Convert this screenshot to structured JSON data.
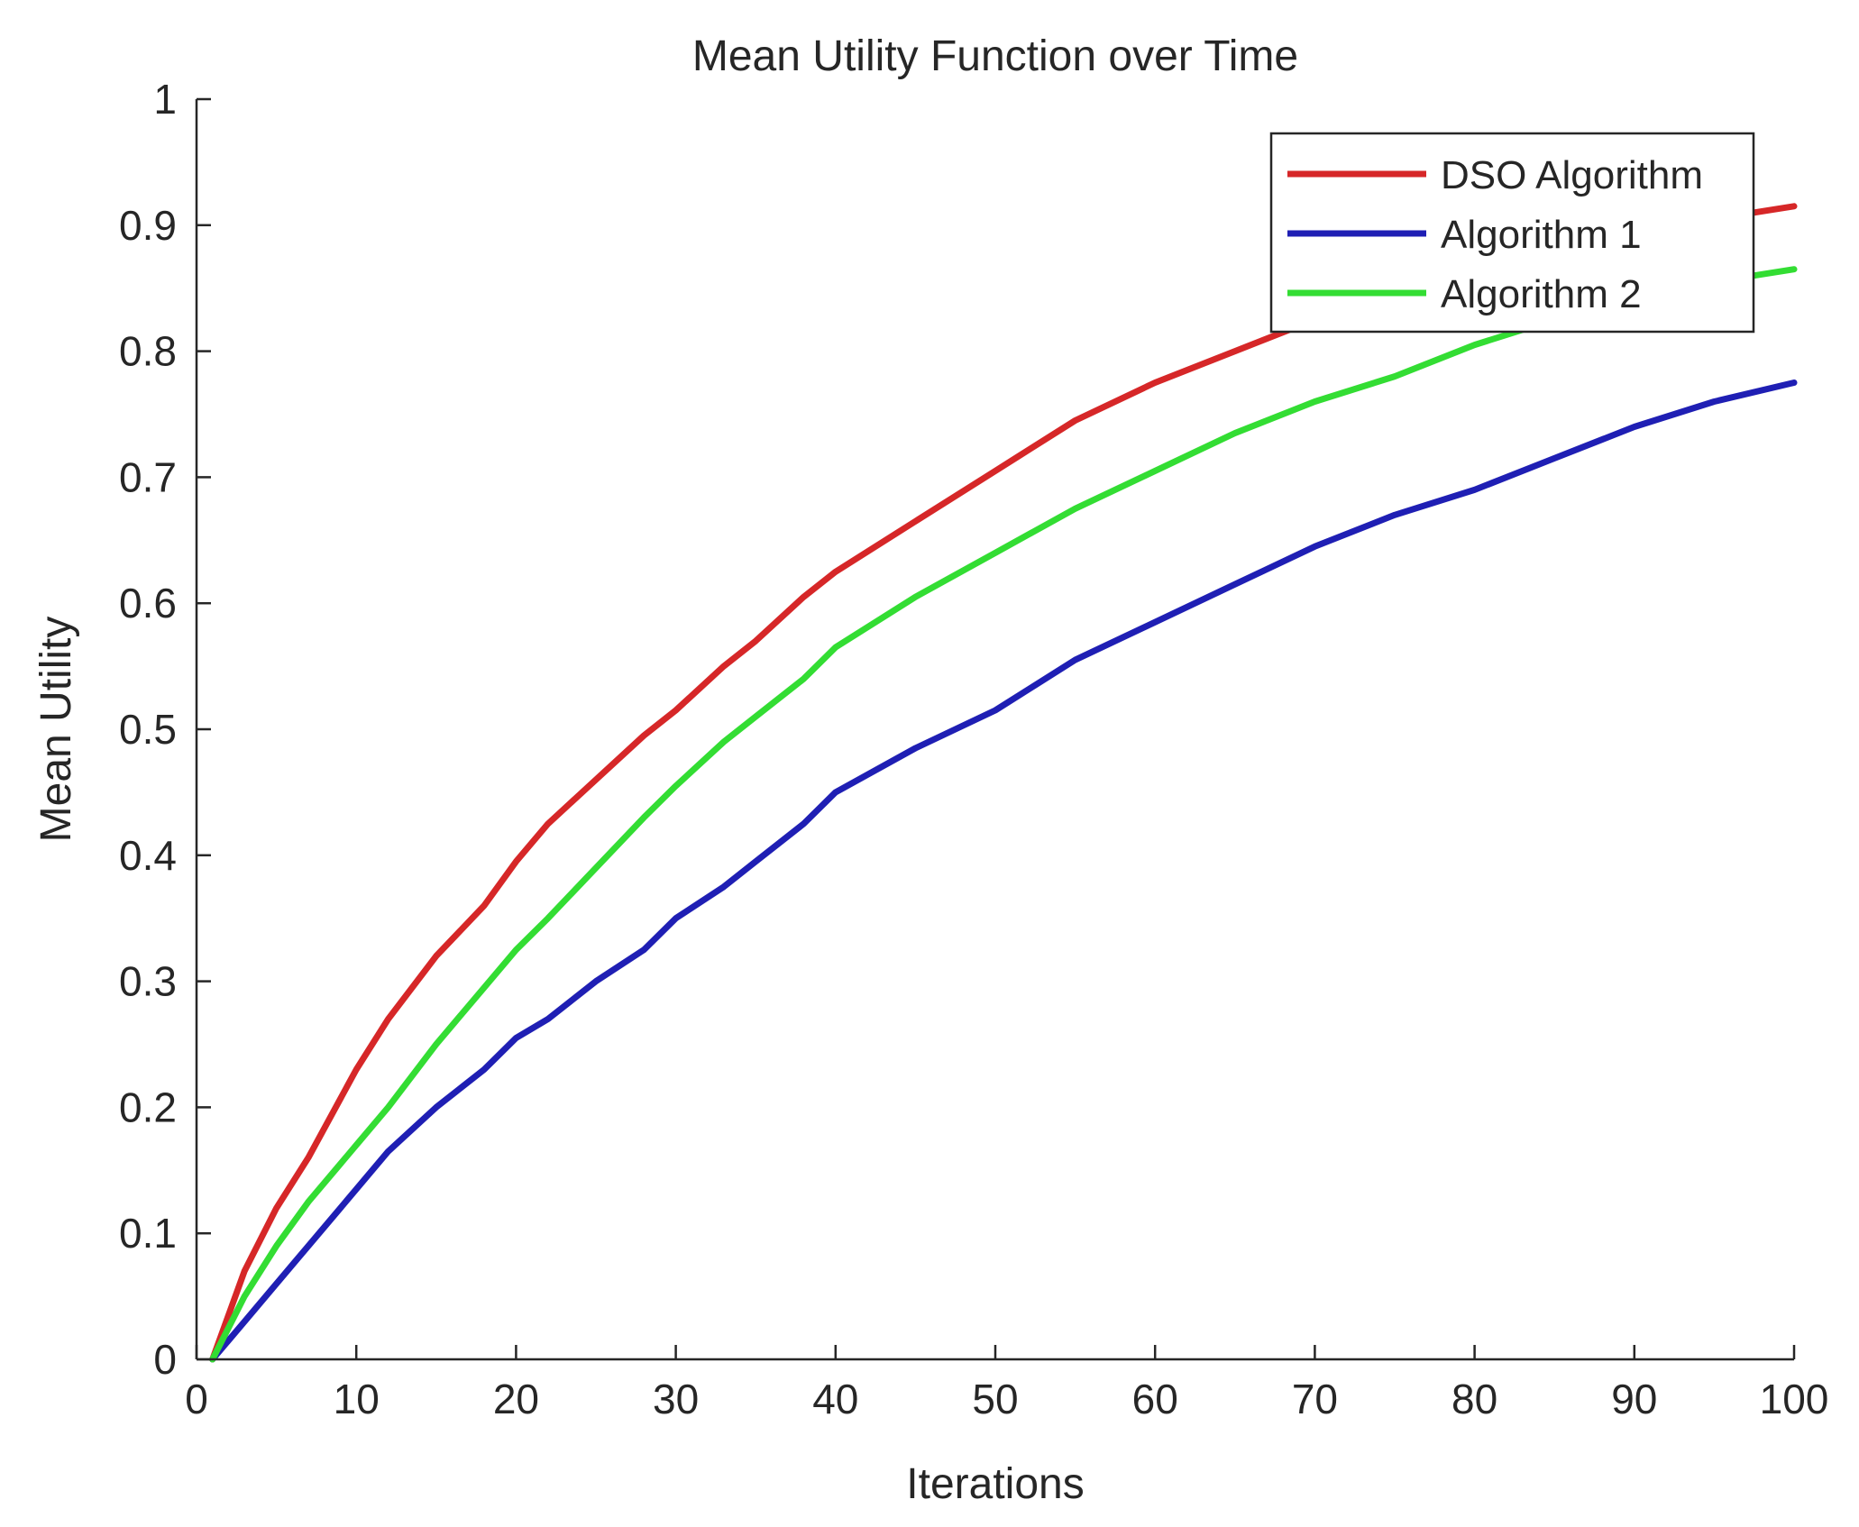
{
  "chart_data": {
    "type": "line",
    "title": "Mean Utility Function over Time",
    "xlabel": "Iterations",
    "ylabel": "Mean Utility",
    "xlim": [
      0,
      100
    ],
    "ylim": [
      0,
      1
    ],
    "xticks": [
      0,
      10,
      20,
      30,
      40,
      50,
      60,
      70,
      80,
      90,
      100
    ],
    "yticks": [
      0,
      0.1,
      0.2,
      0.3,
      0.4,
      0.5,
      0.6,
      0.7,
      0.8,
      0.9,
      1
    ],
    "xtick_labels": [
      "0",
      "10",
      "20",
      "30",
      "40",
      "50",
      "60",
      "70",
      "80",
      "90",
      "100"
    ],
    "ytick_labels": [
      "0",
      "0.1",
      "0.2",
      "0.3",
      "0.4",
      "0.5",
      "0.6",
      "0.7",
      "0.8",
      "0.9",
      "1"
    ],
    "grid": false,
    "legend_position": "top-right",
    "x": [
      1,
      3,
      5,
      7,
      10,
      12,
      15,
      18,
      20,
      22,
      25,
      28,
      30,
      33,
      35,
      38,
      40,
      45,
      50,
      55,
      60,
      65,
      70,
      75,
      80,
      85,
      90,
      95,
      100
    ],
    "series": [
      {
        "name": "DSO Algorithm",
        "color": "#d62728",
        "values": [
          0.0,
          0.07,
          0.12,
          0.16,
          0.23,
          0.27,
          0.32,
          0.36,
          0.395,
          0.425,
          0.46,
          0.495,
          0.515,
          0.55,
          0.57,
          0.605,
          0.625,
          0.665,
          0.705,
          0.745,
          0.775,
          0.8,
          0.825,
          0.845,
          0.865,
          0.88,
          0.895,
          0.905,
          0.915
        ]
      },
      {
        "name": "Algorithm 1",
        "color": "#1f1fb4",
        "values": [
          0.0,
          0.03,
          0.06,
          0.09,
          0.135,
          0.165,
          0.2,
          0.23,
          0.255,
          0.27,
          0.3,
          0.325,
          0.35,
          0.375,
          0.395,
          0.425,
          0.45,
          0.485,
          0.515,
          0.555,
          0.585,
          0.615,
          0.645,
          0.67,
          0.69,
          0.715,
          0.74,
          0.76,
          0.775
        ]
      },
      {
        "name": "Algorithm 2",
        "color": "#33dd33",
        "values": [
          0.0,
          0.05,
          0.09,
          0.125,
          0.17,
          0.2,
          0.25,
          0.295,
          0.325,
          0.35,
          0.39,
          0.43,
          0.455,
          0.49,
          0.51,
          0.54,
          0.565,
          0.605,
          0.64,
          0.675,
          0.705,
          0.735,
          0.76,
          0.78,
          0.805,
          0.825,
          0.84,
          0.855,
          0.865
        ]
      }
    ]
  }
}
